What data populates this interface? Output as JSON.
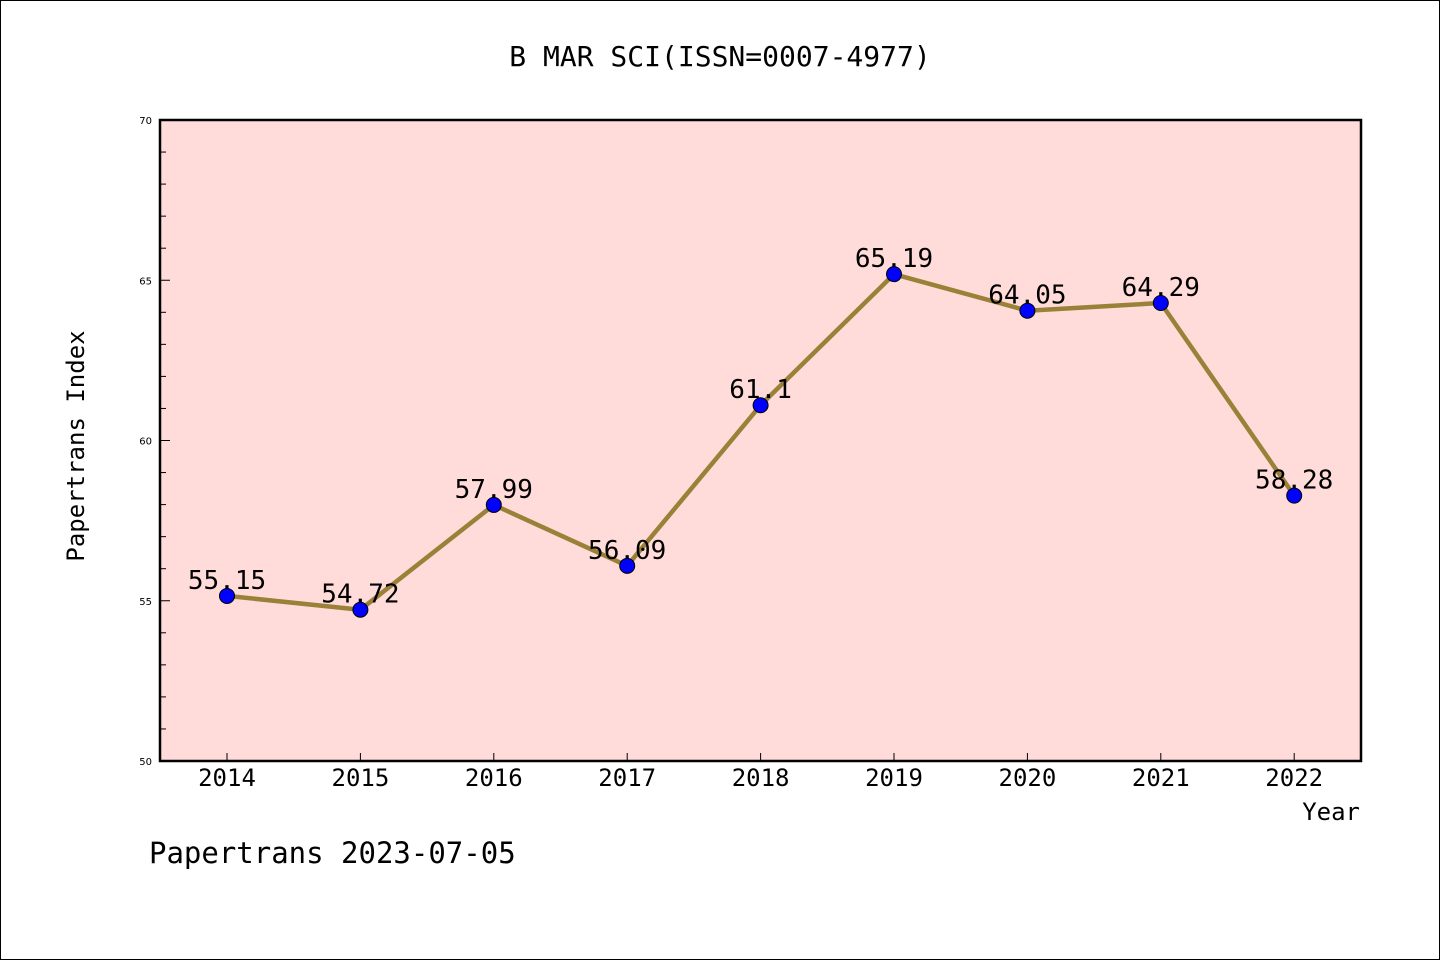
{
  "chart_data": {
    "type": "line",
    "title": "B MAR SCI(ISSN=0007-4977)",
    "xlabel": "Year",
    "ylabel": "Papertrans Index",
    "footer": "Papertrans 2023-07-05",
    "categories": [
      "2014",
      "2015",
      "2016",
      "2017",
      "2018",
      "2019",
      "2020",
      "2021",
      "2022"
    ],
    "series": [
      {
        "values": [
          55.15,
          54.72,
          57.99,
          56.09,
          61.1,
          65.19,
          64.05,
          64.29,
          58.28
        ],
        "labels": [
          "55.15",
          "54.72",
          "57.99",
          "56.09",
          "61.1",
          "65.19",
          "64.05",
          "64.29",
          "58.28"
        ],
        "line_color": "#9a8137",
        "marker_color": "#0000ff"
      }
    ],
    "ylim": [
      50,
      70
    ],
    "yticks": [
      "50",
      "55",
      "60",
      "65",
      "70"
    ],
    "grid": false,
    "legend": "none",
    "plot_background": "#ffdbd9"
  }
}
